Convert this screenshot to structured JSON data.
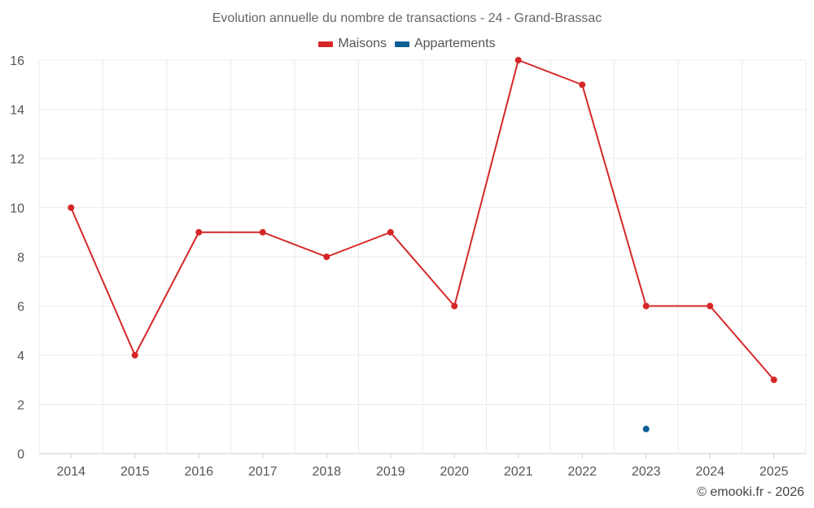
{
  "chart_data": {
    "type": "line",
    "title": "Evolution annuelle du nombre de transactions - 24 - Grand-Brassac",
    "categories": [
      "2014",
      "2015",
      "2016",
      "2017",
      "2018",
      "2019",
      "2020",
      "2021",
      "2022",
      "2023",
      "2024",
      "2025"
    ],
    "series": [
      {
        "name": "Maisons",
        "color": "#d62728",
        "values": [
          10,
          4,
          9,
          9,
          8,
          9,
          6,
          16,
          15,
          6,
          6,
          3
        ]
      },
      {
        "name": "Appartements",
        "color": "#0b5e94",
        "values": [
          null,
          null,
          null,
          null,
          null,
          null,
          null,
          null,
          null,
          1,
          null,
          null
        ]
      }
    ],
    "ylim": [
      0,
      16
    ],
    "yticks": [
      0,
      2,
      4,
      6,
      8,
      10,
      12,
      14,
      16
    ],
    "xlabel": "",
    "ylabel": "",
    "grid": true,
    "legend": "top-center"
  },
  "credit": "© emooki.fr - 2026"
}
